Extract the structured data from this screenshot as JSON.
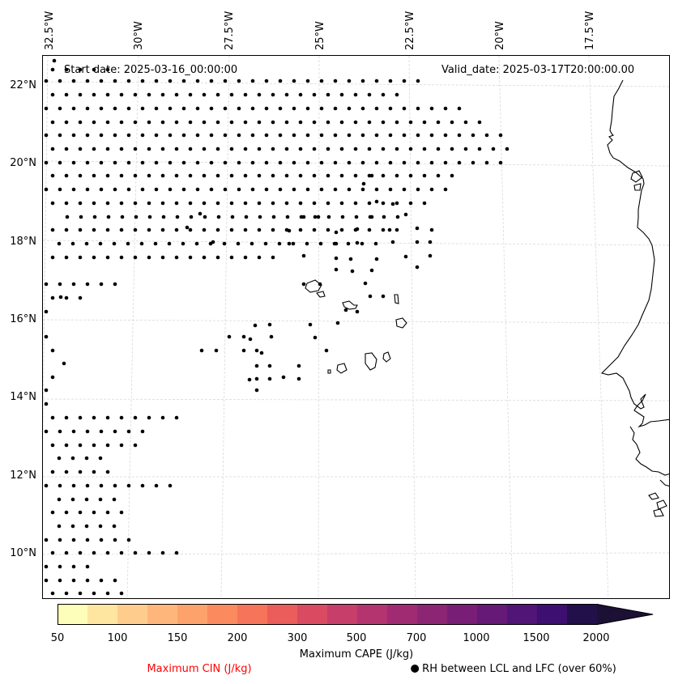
{
  "header": {
    "start_date": "Start date: 2025-03-16_00:00:00",
    "valid_date": "Valid_date: 2025-03-17T20:00:00.00"
  },
  "axes": {
    "lon_labels": [
      "32.5°W",
      "30°W",
      "27.5°W",
      "25°W",
      "22.5°W",
      "20°W",
      "17.5°W"
    ],
    "lat_labels": [
      "22°N",
      "20°N",
      "18°N",
      "16°N",
      "14°N",
      "12°N",
      "10°N"
    ]
  },
  "colorbar": {
    "label": "Maximum CAPE (J/kg)",
    "ticks": [
      "50",
      "100",
      "150",
      "200",
      "300",
      "500",
      "700",
      "1000",
      "1500",
      "2000"
    ],
    "colors": [
      "#fefebb",
      "#fee5a0",
      "#fecd8d",
      "#feb67b",
      "#fda26b",
      "#fb8a5e",
      "#f67459",
      "#ea5d5a",
      "#da4b62",
      "#c73e6a",
      "#b43470",
      "#a02b73",
      "#8d2575",
      "#791e77",
      "#661977",
      "#511477",
      "#3c0f71",
      "#22104a"
    ],
    "extend_color": "#1c1035"
  },
  "legend": {
    "cin": "Maximum CIN (J/kg)",
    "rh": "RH between LCL and LFC (over 60%)",
    "cin_color": "#ff0000"
  },
  "map": {
    "grid_color": "#d9d9d9",
    "coast_color": "#000000"
  }
}
